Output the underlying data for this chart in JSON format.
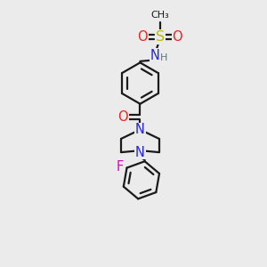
{
  "bg": "#ebebeb",
  "bond_color": "#1a1a1a",
  "lw": 1.6,
  "atom_colors": {
    "N": "#2222ee",
    "O": "#ee2222",
    "S": "#bbbb00",
    "F": "#dd00bb",
    "H": "#5a7878",
    "C": "#1a1a1a"
  },
  "fs": 9.5,
  "xlim": [
    0,
    10
  ],
  "ylim": [
    0,
    10
  ]
}
